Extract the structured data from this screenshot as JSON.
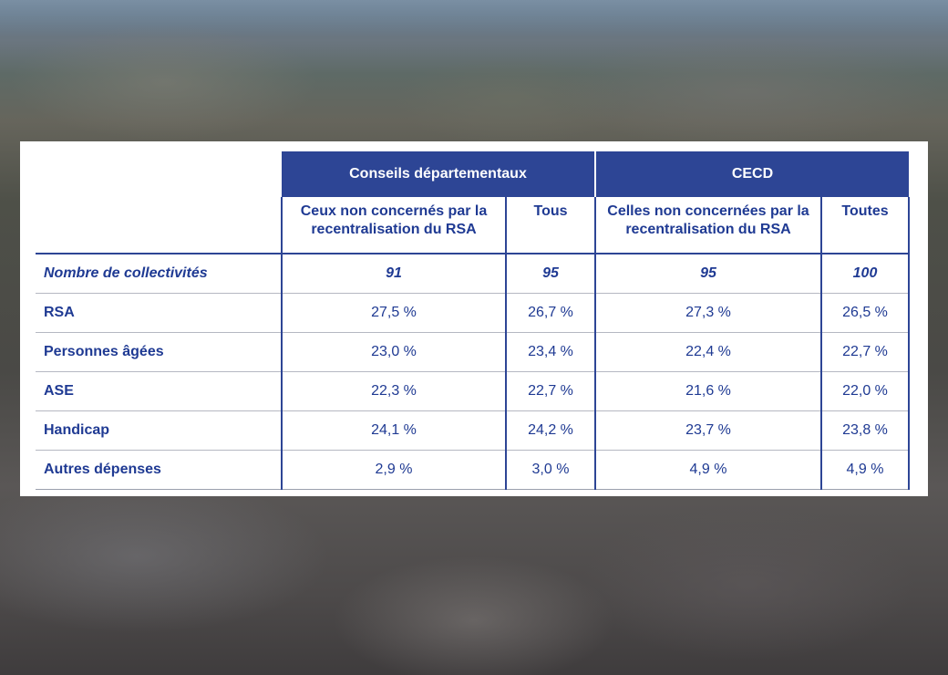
{
  "table": {
    "group_headers": [
      "Conseils départementaux",
      "CECD"
    ],
    "sub_headers": [
      "Ceux non concernés par la recentralisation du RSA",
      "Tous",
      "Celles non concernées par la recentralisation du RSA",
      "Toutes"
    ],
    "rows": [
      {
        "label": "Nombre de collectivités",
        "values": [
          "91",
          "95",
          "95",
          "100"
        ]
      },
      {
        "label": "RSA",
        "values": [
          "27,5 %",
          "26,7 %",
          "27,3 %",
          "26,5 %"
        ]
      },
      {
        "label": "Personnes âgées",
        "values": [
          "23,0 %",
          "23,4 %",
          "22,4 %",
          "22,7 %"
        ]
      },
      {
        "label": "ASE",
        "values": [
          "22,3 %",
          "22,7 %",
          "21,6 %",
          "22,0 %"
        ]
      },
      {
        "label": "Handicap",
        "values": [
          "24,1 %",
          "24,2 %",
          "23,7 %",
          "23,8 %"
        ]
      },
      {
        "label": "Autres dépenses",
        "values": [
          "2,9 %",
          "3,0 %",
          "4,9 %",
          "4,9 %"
        ]
      }
    ]
  },
  "colors": {
    "header_background": "#2d4595",
    "text": "#1f3a93",
    "background_photo": "blurred aerial city view"
  }
}
